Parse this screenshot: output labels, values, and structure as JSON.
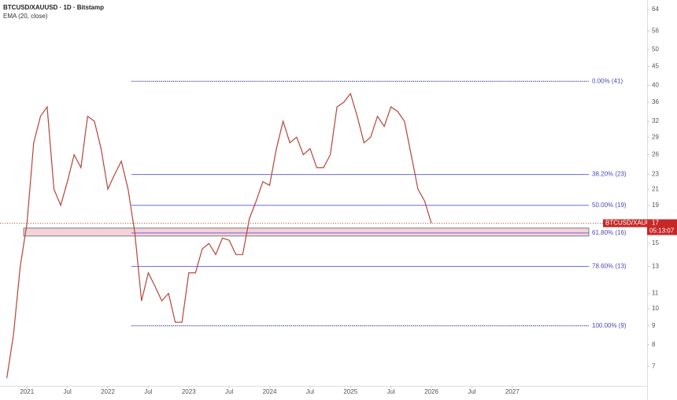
{
  "chart_data": {
    "type": "line",
    "title": "BTCUSD/XAUUSD · 1D · Bitstamp",
    "indicator": "EMA (20, close)",
    "symbol": "BTCUSD/XAUUSD",
    "last_price": 17,
    "countdown": "05:13:07",
    "log_scale": true,
    "grid": false,
    "x": [
      "2020-10",
      "2020-11",
      "2020-12",
      "2021-01",
      "2021-02",
      "2021-03",
      "2021-04",
      "2021-05",
      "2021-06",
      "2021-07",
      "2021-08",
      "2021-09",
      "2021-10",
      "2021-11",
      "2021-12",
      "2022-01",
      "2022-02",
      "2022-03",
      "2022-04",
      "2022-05",
      "2022-06",
      "2022-07",
      "2022-08",
      "2022-09",
      "2022-10",
      "2022-11",
      "2022-12",
      "2023-01",
      "2023-02",
      "2023-03",
      "2023-04",
      "2023-05",
      "2023-06",
      "2023-07",
      "2023-08",
      "2023-09",
      "2023-10",
      "2023-11",
      "2023-12",
      "2024-01",
      "2024-02",
      "2024-03",
      "2024-04",
      "2024-05",
      "2024-06",
      "2024-07",
      "2024-08",
      "2024-09",
      "2024-10",
      "2024-11",
      "2024-12",
      "2025-01",
      "2025-02",
      "2025-03",
      "2025-04",
      "2025-05",
      "2025-06",
      "2025-07",
      "2025-08",
      "2025-09",
      "2025-10",
      "2025-11",
      "2025-12",
      "2026-01"
    ],
    "series": [
      {
        "name": "BTCUSD/XAUUSD",
        "color": "#b5453a",
        "values": [
          6.5,
          8.5,
          13,
          17,
          28,
          33,
          35,
          21,
          19,
          22,
          26,
          24,
          33,
          32,
          27,
          21,
          23,
          25,
          21,
          16,
          10.5,
          12.5,
          11.5,
          10.5,
          11,
          9.2,
          9.2,
          12.5,
          12.5,
          14.5,
          15,
          14,
          15.5,
          15.3,
          14,
          14,
          17.5,
          19.5,
          22,
          21.5,
          27,
          32,
          28,
          29,
          26,
          27,
          24,
          24,
          26,
          35,
          36,
          38,
          33,
          28,
          29,
          33,
          31,
          35,
          34,
          32,
          26,
          21,
          19.5,
          17
        ]
      }
    ],
    "fib_levels": [
      {
        "label": "0.00% (41)",
        "value": 41
      },
      {
        "label": "38.20% (23)",
        "value": 23
      },
      {
        "label": "50.00% (19)",
        "value": 19
      },
      {
        "label": "61.80% (16)",
        "value": 16
      },
      {
        "label": "78.60% (13)",
        "value": 13
      },
      {
        "label": "100.00% (9)",
        "value": 9
      }
    ],
    "zone": [
      15.7,
      16.5
    ],
    "xlim": [
      "2020-09",
      "2028-09"
    ],
    "xticks": [
      {
        "value": "2021-01",
        "label": "2021"
      },
      {
        "value": "2021-07",
        "label": "Jul"
      },
      {
        "value": "2022-01",
        "label": "2022"
      },
      {
        "value": "2022-07",
        "label": "Jul"
      },
      {
        "value": "2023-01",
        "label": "2023"
      },
      {
        "value": "2023-07",
        "label": "Jul"
      },
      {
        "value": "2024-01",
        "label": "2024"
      },
      {
        "value": "2024-07",
        "label": "Jul"
      },
      {
        "value": "2025-01",
        "label": "2025"
      },
      {
        "value": "2025-07",
        "label": "Jul"
      },
      {
        "value": "2026-01",
        "label": "2026"
      },
      {
        "value": "2026-07",
        "label": "Jul"
      },
      {
        "value": "2027-01",
        "label": "2027"
      }
    ],
    "ylim": [
      6.2,
      67.9
    ],
    "yticks": [
      7,
      8,
      9,
      10,
      11,
      13,
      15,
      19,
      21,
      23,
      26,
      29,
      32,
      36,
      40,
      45,
      50,
      56,
      64
    ]
  }
}
